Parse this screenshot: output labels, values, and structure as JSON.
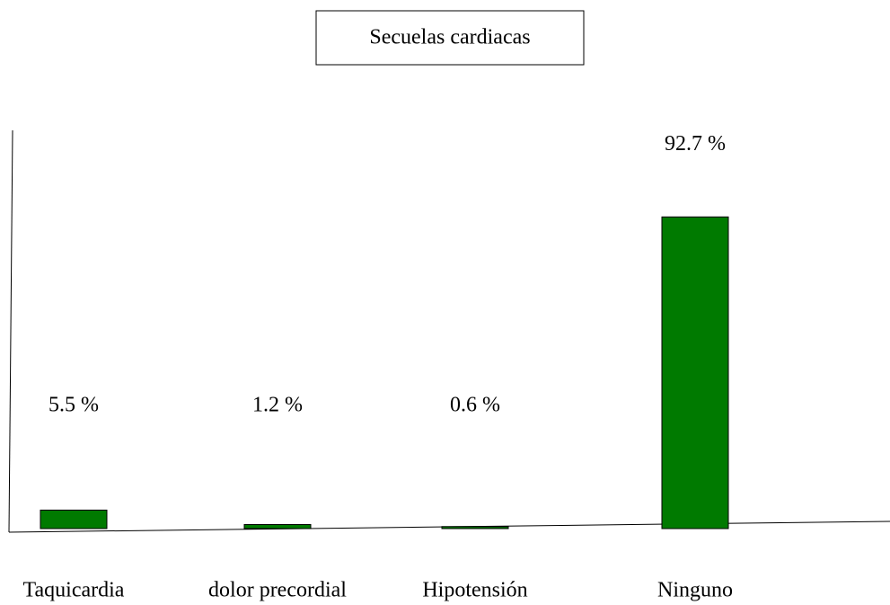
{
  "chart_data": {
    "type": "bar",
    "title": "Secuelas cardiacas",
    "categories": [
      "Taquicardia",
      "dolor precordial",
      "Hipotensión",
      "Ninguno"
    ],
    "values": [
      5.5,
      1.2,
      0.6,
      92.7
    ],
    "value_labels": [
      "5.5 %",
      "1.2 %",
      "0.6 %",
      "92.7 %"
    ],
    "color": "#007a00",
    "ylim": [
      0,
      100
    ]
  }
}
